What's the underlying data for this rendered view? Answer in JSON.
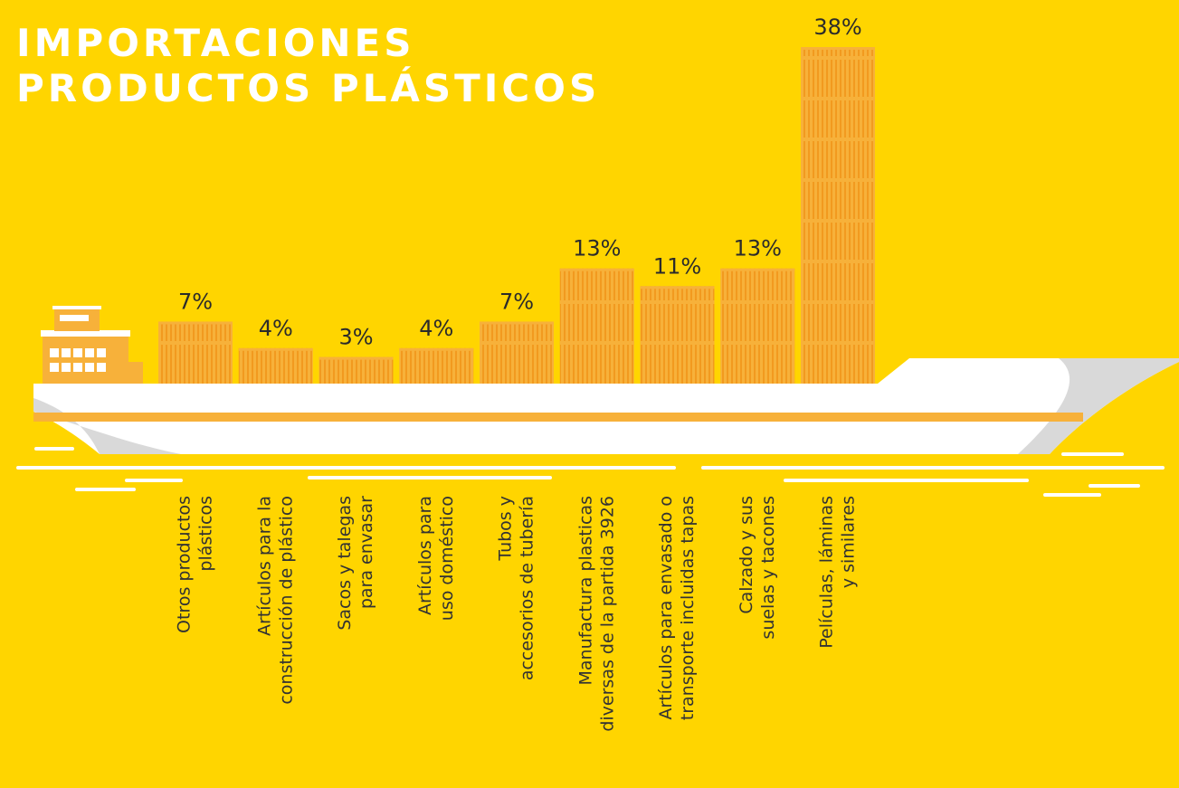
{
  "chart_data": {
    "type": "bar",
    "title": [
      "IMPORTACIONES",
      "PRODUCTOS PLÁSTICOS"
    ],
    "categories": [
      [
        "Otros productos",
        "plásticos"
      ],
      [
        "Artículos para la",
        "construcción de plástico"
      ],
      [
        "Sacos y talegas",
        "para envasar"
      ],
      [
        "Artículos para",
        "uso doméstico"
      ],
      [
        "Tubos y",
        "accesorios de tubería"
      ],
      [
        "Manufactura plasticas",
        "diversas de la partida 3926"
      ],
      [
        "Artículos para envasado o",
        "transporte incluidas tapas"
      ],
      [
        "Calzado y sus",
        "suelas y tacones"
      ],
      [
        "Películas, láminas",
        "y similares"
      ]
    ],
    "values": [
      7,
      4,
      3,
      4,
      7,
      13,
      11,
      13,
      38
    ],
    "value_labels": [
      "7%",
      "4%",
      "3%",
      "4%",
      "7%",
      "13%",
      "11%",
      "13%",
      "38%"
    ],
    "color": "#F7B13A"
  }
}
